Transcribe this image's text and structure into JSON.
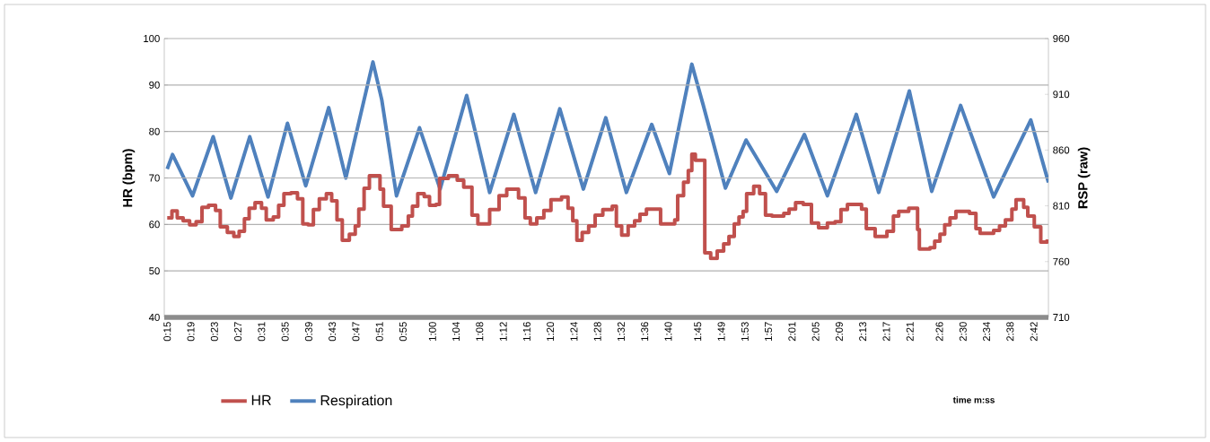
{
  "chart_data": {
    "type": "line",
    "annotations": [
      "time m:ss"
    ],
    "ylabel": "HR (bpm)",
    "y2label": "RSP (raw)",
    "xlim": [
      14.5,
      164.5
    ],
    "xticks": [
      {
        "value": 15,
        "label": "0:15"
      },
      {
        "value": 19,
        "label": "0:19"
      },
      {
        "value": 23,
        "label": "0:23"
      },
      {
        "value": 27,
        "label": "0:27"
      },
      {
        "value": 31,
        "label": "0:31"
      },
      {
        "value": 35,
        "label": "0:35"
      },
      {
        "value": 39,
        "label": "0:39"
      },
      {
        "value": 43,
        "label": "0:43"
      },
      {
        "value": 47,
        "label": "0:47"
      },
      {
        "value": 51,
        "label": "0:51"
      },
      {
        "value": 55,
        "label": "0:55"
      },
      {
        "value": 60,
        "label": "1:00"
      },
      {
        "value": 64,
        "label": "1:04"
      },
      {
        "value": 68,
        "label": "1:08"
      },
      {
        "value": 72,
        "label": "1:12"
      },
      {
        "value": 76,
        "label": "1:16"
      },
      {
        "value": 80,
        "label": "1:20"
      },
      {
        "value": 84,
        "label": "1:24"
      },
      {
        "value": 88,
        "label": "1:28"
      },
      {
        "value": 92,
        "label": "1:32"
      },
      {
        "value": 96,
        "label": "1:36"
      },
      {
        "value": 100,
        "label": "1:40"
      },
      {
        "value": 105,
        "label": "1:45"
      },
      {
        "value": 109,
        "label": "1:49"
      },
      {
        "value": 113,
        "label": "1:53"
      },
      {
        "value": 117,
        "label": "1:57"
      },
      {
        "value": 121,
        "label": "2:01"
      },
      {
        "value": 125,
        "label": "2:05"
      },
      {
        "value": 129,
        "label": "2:09"
      },
      {
        "value": 133,
        "label": "2:13"
      },
      {
        "value": 137,
        "label": "2:17"
      },
      {
        "value": 141,
        "label": "2:21"
      },
      {
        "value": 146,
        "label": "2:26"
      },
      {
        "value": 150,
        "label": "2:30"
      },
      {
        "value": 154,
        "label": "2:34"
      },
      {
        "value": 158,
        "label": "2:38"
      },
      {
        "value": 162,
        "label": "2:42"
      }
    ],
    "ylim": [
      40,
      100
    ],
    "yticks": [
      40,
      50,
      60,
      70,
      80,
      90,
      100
    ],
    "y2lim": [
      710,
      960
    ],
    "y2ticks": [
      710,
      760,
      810,
      860,
      910,
      960
    ],
    "grid": "y",
    "legend": "bottom",
    "series": [
      {
        "name": "HR",
        "type": "step",
        "color": "#c0504d",
        "x": [
          15.0,
          15.8,
          16.7,
          17.7,
          18.8,
          19.9,
          20.9,
          22.0,
          23.2,
          24.0,
          25.2,
          26.3,
          27.2,
          28.1,
          28.9,
          29.9,
          31.0,
          31.8,
          33.0,
          33.9,
          34.8,
          36.0,
          37.1,
          38.0,
          38.9,
          39.8,
          40.8,
          42.0,
          42.9,
          43.8,
          44.7,
          45.9,
          46.9,
          47.5,
          48.4,
          49.3,
          51.1,
          51.7,
          53.0,
          54.8,
          55.9,
          56.6,
          57.5,
          58.6,
          59.5,
          60.6,
          61.2,
          62.7,
          64.2,
          65.3,
          66.7,
          67.7,
          69.7,
          71.3,
          72.6,
          74.6,
          75.7,
          76.6,
          77.7,
          78.9,
          80.1,
          81.9,
          83.0,
          83.8,
          84.5,
          85.4,
          86.5,
          87.6,
          88.9,
          90.5,
          91.2,
          92.1,
          93.2,
          94.3,
          95.2,
          96.3,
          98.7,
          101.1,
          101.6,
          102.6,
          103.4,
          104.0,
          104.6,
          106.2,
          107.2,
          108.3,
          109.4,
          110.3,
          111.2,
          112.0,
          112.7,
          113.3,
          114.5,
          115.5,
          116.5,
          117.6,
          119.6,
          120.5,
          121.6,
          122.9,
          124.3,
          125.5,
          127.0,
          128.3,
          129.3,
          130.4,
          132.8,
          133.6,
          135.1,
          137.1,
          138.2,
          139.1,
          140.8,
          142.3,
          142.6,
          144.4,
          145.2,
          146.1,
          146.9,
          147.8,
          148.8,
          151.1,
          152.2,
          152.9,
          155.2,
          156.2,
          157.2,
          158.3,
          159.0,
          160.3,
          161.0,
          162.1,
          163.2,
          164.3
        ],
        "values": [
          61.4,
          62.9,
          61.4,
          60.8,
          59.9,
          60.6,
          63.7,
          64.1,
          63.0,
          59.5,
          58.3,
          57.4,
          58.5,
          61.2,
          63.5,
          64.7,
          63.5,
          61.0,
          61.6,
          64.1,
          66.6,
          66.8,
          65.5,
          60.1,
          59.9,
          63.2,
          65.5,
          66.6,
          65.1,
          61.0,
          56.6,
          57.9,
          59.7,
          63.3,
          67.8,
          70.5,
          67.6,
          63.9,
          58.9,
          59.7,
          61.8,
          63.9,
          66.6,
          66.0,
          64.1,
          64.3,
          69.9,
          70.5,
          69.5,
          68.0,
          62.0,
          60.1,
          63.2,
          66.2,
          67.6,
          65.7,
          61.4,
          60.1,
          61.4,
          63.0,
          65.3,
          65.9,
          63.5,
          60.8,
          56.6,
          58.3,
          59.7,
          62.0,
          63.2,
          63.9,
          59.7,
          57.7,
          59.7,
          60.8,
          62.2,
          63.3,
          60.1,
          61.0,
          66.2,
          69.1,
          71.6,
          75.1,
          73.8,
          53.9,
          52.7,
          54.3,
          55.8,
          57.4,
          60.1,
          61.6,
          62.8,
          66.6,
          68.2,
          66.6,
          62.0,
          61.8,
          62.4,
          63.3,
          64.7,
          64.3,
          60.3,
          59.3,
          60.3,
          60.6,
          63.2,
          64.3,
          63.3,
          59.1,
          57.4,
          58.5,
          61.8,
          62.8,
          63.5,
          58.9,
          54.7,
          55.0,
          56.4,
          57.9,
          59.9,
          61.4,
          62.8,
          62.4,
          59.1,
          58.1,
          58.7,
          59.7,
          61.0,
          63.3,
          65.3,
          63.7,
          61.8,
          59.5,
          56.2,
          56.8
        ]
      },
      {
        "name": "Respiration",
        "axis": "y2",
        "color": "#4f81bd",
        "x": [
          15.0,
          15.9,
          19.3,
          22.8,
          25.8,
          29.0,
          32.1,
          35.4,
          38.5,
          42.4,
          45.3,
          49.9,
          51.4,
          53.9,
          57.8,
          61.3,
          65.8,
          69.7,
          73.8,
          77.5,
          81.6,
          85.6,
          89.4,
          92.9,
          97.2,
          100.2,
          104.0,
          105.9,
          109.7,
          113.2,
          118.4,
          123.1,
          127.0,
          131.9,
          135.7,
          140.9,
          144.7,
          149.6,
          155.2,
          161.5,
          164.5
        ],
        "values": [
          843,
          856,
          819,
          872,
          817,
          872,
          818,
          884,
          828,
          898,
          835,
          939,
          905,
          819,
          880,
          825,
          909,
          822,
          892,
          822,
          897,
          825,
          889,
          822,
          883,
          839,
          937,
          901,
          826,
          869,
          823,
          874,
          819,
          892,
          822,
          913,
          823,
          900,
          818,
          887,
          831
        ]
      }
    ]
  }
}
